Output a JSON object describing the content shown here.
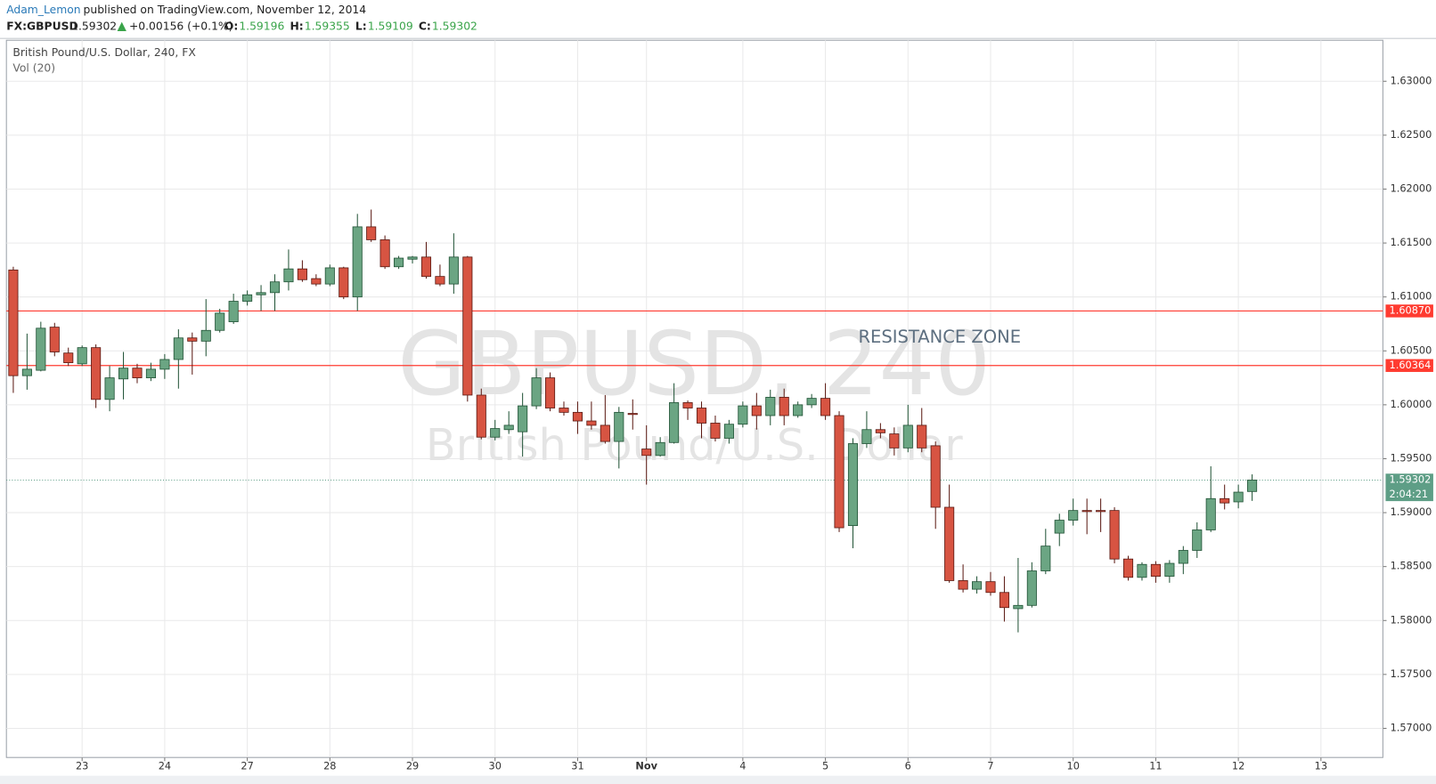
{
  "header": {
    "author": "Adam_Lemon",
    "published": "published on TradingView.com, November 12, 2014",
    "symbol": "FX:GBPUSD",
    "last": "1.59302",
    "change": "+0.00156 (+0.1%)",
    "ohlc": [
      {
        "label": "O:",
        "value": "1.59196"
      },
      {
        "label": "H:",
        "value": "1.59355"
      },
      {
        "label": "L:",
        "value": "1.59109"
      },
      {
        "label": "C:",
        "value": "1.59302"
      }
    ]
  },
  "chart_data": {
    "type": "candlestick",
    "title": "British Pound/U.S. Dollar, 240, FX",
    "subtitle": "Vol (20)",
    "watermark": [
      "GBPUSD, 240",
      "British Pound/U.S. Dollar"
    ],
    "annotation": "RESISTANCE ZONE",
    "up_color": "#6ba583",
    "up_border": "#225437",
    "down_color": "#d75442",
    "down_border": "#5b1a13",
    "grid": true,
    "categories": [
      null,
      null,
      null,
      null,
      null,
      "23",
      null,
      null,
      null,
      null,
      null,
      "24",
      null,
      null,
      null,
      null,
      null,
      "27",
      null,
      null,
      null,
      null,
      null,
      "28",
      null,
      null,
      null,
      null,
      null,
      "29",
      null,
      null,
      null,
      null,
      null,
      "30",
      null,
      null,
      null,
      null,
      null,
      "31",
      null,
      null,
      null,
      null,
      "Nov",
      null,
      null,
      null,
      null,
      null,
      null,
      "4",
      null,
      null,
      null,
      null,
      null,
      "5",
      null,
      null,
      null,
      null,
      null,
      "6",
      null,
      null,
      null,
      null,
      null,
      "7",
      null,
      null,
      null,
      null,
      null,
      "10",
      null,
      null,
      null,
      null,
      null,
      "11",
      null,
      null,
      null,
      null,
      null,
      "12",
      null,
      null,
      null,
      null,
      null,
      "13"
    ],
    "open": [
      1.6125,
      1.6027,
      1.6032,
      1.6072,
      1.6048,
      1.6038,
      1.6053,
      1.6005,
      1.6024,
      1.6034,
      1.6025,
      1.6033,
      1.6042,
      1.6062,
      1.6059,
      1.6069,
      1.6077,
      1.6096,
      1.6102,
      1.6104,
      1.6114,
      1.6126,
      1.6117,
      1.6112,
      1.6127,
      1.61,
      1.6165,
      1.6153,
      1.6128,
      1.6135,
      1.6137,
      1.6119,
      1.6112,
      1.6137,
      1.6009,
      1.597,
      1.5977,
      1.5975,
      1.5999,
      1.6025,
      1.5997,
      1.5993,
      1.5985,
      1.5981,
      1.5966,
      1.5992,
      1.5959,
      1.5953,
      1.5965,
      1.6002,
      1.5997,
      1.5983,
      1.5969,
      1.5982,
      1.5999,
      1.599,
      1.6007,
      1.599,
      1.6,
      1.6006,
      1.599,
      1.5888,
      1.5964,
      1.5977,
      1.5973,
      1.596,
      1.5981,
      1.5962,
      1.5905,
      1.5837,
      1.5829,
      1.5836,
      1.5826,
      1.5811,
      1.5814,
      1.5846,
      1.5881,
      1.5893,
      1.5902,
      1.5902,
      1.5902,
      1.5857,
      1.584,
      1.5852,
      1.5841,
      1.5853,
      1.5865,
      1.5884,
      1.5913,
      1.591,
      1.59196,
      null,
      null,
      null,
      null,
      null
    ],
    "high": [
      1.6128,
      1.6066,
      1.6077,
      1.6076,
      1.6053,
      1.6055,
      1.6056,
      1.6036,
      1.6049,
      1.6038,
      1.6039,
      1.6047,
      1.607,
      1.6067,
      1.6098,
      1.6089,
      1.6103,
      1.6106,
      1.6111,
      1.6121,
      1.6144,
      1.6134,
      1.6121,
      1.613,
      1.6128,
      1.6177,
      1.6181,
      1.6157,
      1.6138,
      1.6138,
      1.6151,
      1.613,
      1.6159,
      1.6138,
      1.6015,
      1.5986,
      1.5994,
      1.6011,
      1.6034,
      1.603,
      1.6003,
      1.6003,
      1.6003,
      1.6009,
      1.5998,
      1.6005,
      1.5981,
      1.597,
      1.602,
      1.6004,
      1.6003,
      1.599,
      1.5986,
      1.6003,
      1.6011,
      1.6014,
      1.6015,
      1.6003,
      1.601,
      1.602,
      1.5994,
      1.5969,
      1.5994,
      1.5983,
      1.5979,
      1.6,
      1.5997,
      1.5966,
      1.5926,
      1.5852,
      1.5841,
      1.5845,
      1.5841,
      1.5858,
      1.5854,
      1.5885,
      1.5899,
      1.5913,
      1.5913,
      1.5913,
      1.5905,
      1.586,
      1.5854,
      1.5855,
      1.5856,
      1.5869,
      1.5891,
      1.5943,
      1.5926,
      1.5926,
      1.59355,
      null,
      null,
      null,
      null,
      null
    ],
    "low": [
      1.6011,
      1.6014,
      1.6031,
      1.6045,
      1.6036,
      1.6036,
      1.5997,
      1.5994,
      1.6005,
      1.602,
      1.6022,
      1.6024,
      1.6015,
      1.6028,
      1.6045,
      1.6067,
      1.6075,
      1.6092,
      1.6087,
      1.6087,
      1.6106,
      1.6114,
      1.611,
      1.611,
      1.6098,
      1.6087,
      1.6151,
      1.6126,
      1.6126,
      1.6131,
      1.6117,
      1.611,
      1.6103,
      1.6003,
      1.5968,
      1.5967,
      1.5973,
      1.5952,
      1.5996,
      1.5994,
      1.599,
      1.5973,
      1.5977,
      1.5964,
      1.5941,
      1.5977,
      1.5926,
      1.5952,
      1.5964,
      1.5986,
      1.5969,
      1.5966,
      1.5964,
      1.5979,
      1.5977,
      1.5981,
      1.5981,
      1.5988,
      1.5997,
      1.5986,
      1.5882,
      1.5867,
      1.596,
      1.5969,
      1.5953,
      1.5956,
      1.5956,
      1.5885,
      1.5835,
      1.5826,
      1.5825,
      1.5823,
      1.5799,
      1.5789,
      1.5812,
      1.5843,
      1.5869,
      1.5888,
      1.588,
      1.5882,
      1.5853,
      1.5837,
      1.5837,
      1.5835,
      1.5835,
      1.5843,
      1.5858,
      1.5882,
      1.5903,
      1.5904,
      1.59109,
      null,
      null,
      null,
      null,
      null
    ],
    "close": [
      1.6027,
      1.6033,
      1.6071,
      1.6049,
      1.6039,
      1.6053,
      1.6005,
      1.6025,
      1.6034,
      1.6025,
      1.6033,
      1.6042,
      1.6062,
      1.6059,
      1.6069,
      1.6085,
      1.6096,
      1.6102,
      1.6104,
      1.6114,
      1.6126,
      1.6116,
      1.6112,
      1.6127,
      1.61,
      1.6165,
      1.6153,
      1.6128,
      1.6136,
      1.6137,
      1.6119,
      1.6112,
      1.6137,
      1.6009,
      1.597,
      1.5978,
      1.5981,
      1.5999,
      1.6025,
      1.5997,
      1.5993,
      1.5985,
      1.5981,
      1.5966,
      1.5993,
      1.5991,
      1.5953,
      1.5965,
      1.6002,
      1.5997,
      1.5983,
      1.5969,
      1.5982,
      1.5999,
      1.599,
      1.6007,
      1.599,
      1.6,
      1.6006,
      1.599,
      1.5886,
      1.5964,
      1.5977,
      1.5974,
      1.596,
      1.5981,
      1.596,
      1.5905,
      1.5837,
      1.5829,
      1.5836,
      1.5826,
      1.5812,
      1.5814,
      1.5846,
      1.5869,
      1.5893,
      1.5902,
      1.5901,
      1.5901,
      1.5857,
      1.584,
      1.5852,
      1.5841,
      1.5853,
      1.5865,
      1.5884,
      1.5913,
      1.5909,
      1.5919,
      1.59302,
      null,
      null,
      null,
      null,
      null
    ],
    "ylim": [
      1.5673,
      1.6338
    ],
    "yticks": [
      {
        "value": 1.57,
        "label": "1.57000"
      },
      {
        "value": 1.575,
        "label": "1.57500"
      },
      {
        "value": 1.58,
        "label": "1.58000"
      },
      {
        "value": 1.585,
        "label": "1.58500"
      },
      {
        "value": 1.59,
        "label": "1.59000"
      },
      {
        "value": 1.595,
        "label": "1.59500"
      },
      {
        "value": 1.6,
        "label": "1.60000"
      },
      {
        "value": 1.605,
        "label": "1.60500"
      },
      {
        "value": 1.61,
        "label": "1.61000"
      },
      {
        "value": 1.615,
        "label": "1.61500"
      },
      {
        "value": 1.62,
        "label": "1.62000"
      },
      {
        "value": 1.625,
        "label": "1.62500"
      },
      {
        "value": 1.63,
        "label": "1.63000"
      }
    ],
    "levels": [
      {
        "value": 1.6087,
        "label": "1.60870",
        "color": "#ff3b30"
      },
      {
        "value": 1.60364,
        "label": "1.60364",
        "color": "#ff3b30"
      }
    ],
    "last_price": {
      "value": 1.59302,
      "countdown": "2:04:21",
      "color": "#5e9e86"
    }
  }
}
